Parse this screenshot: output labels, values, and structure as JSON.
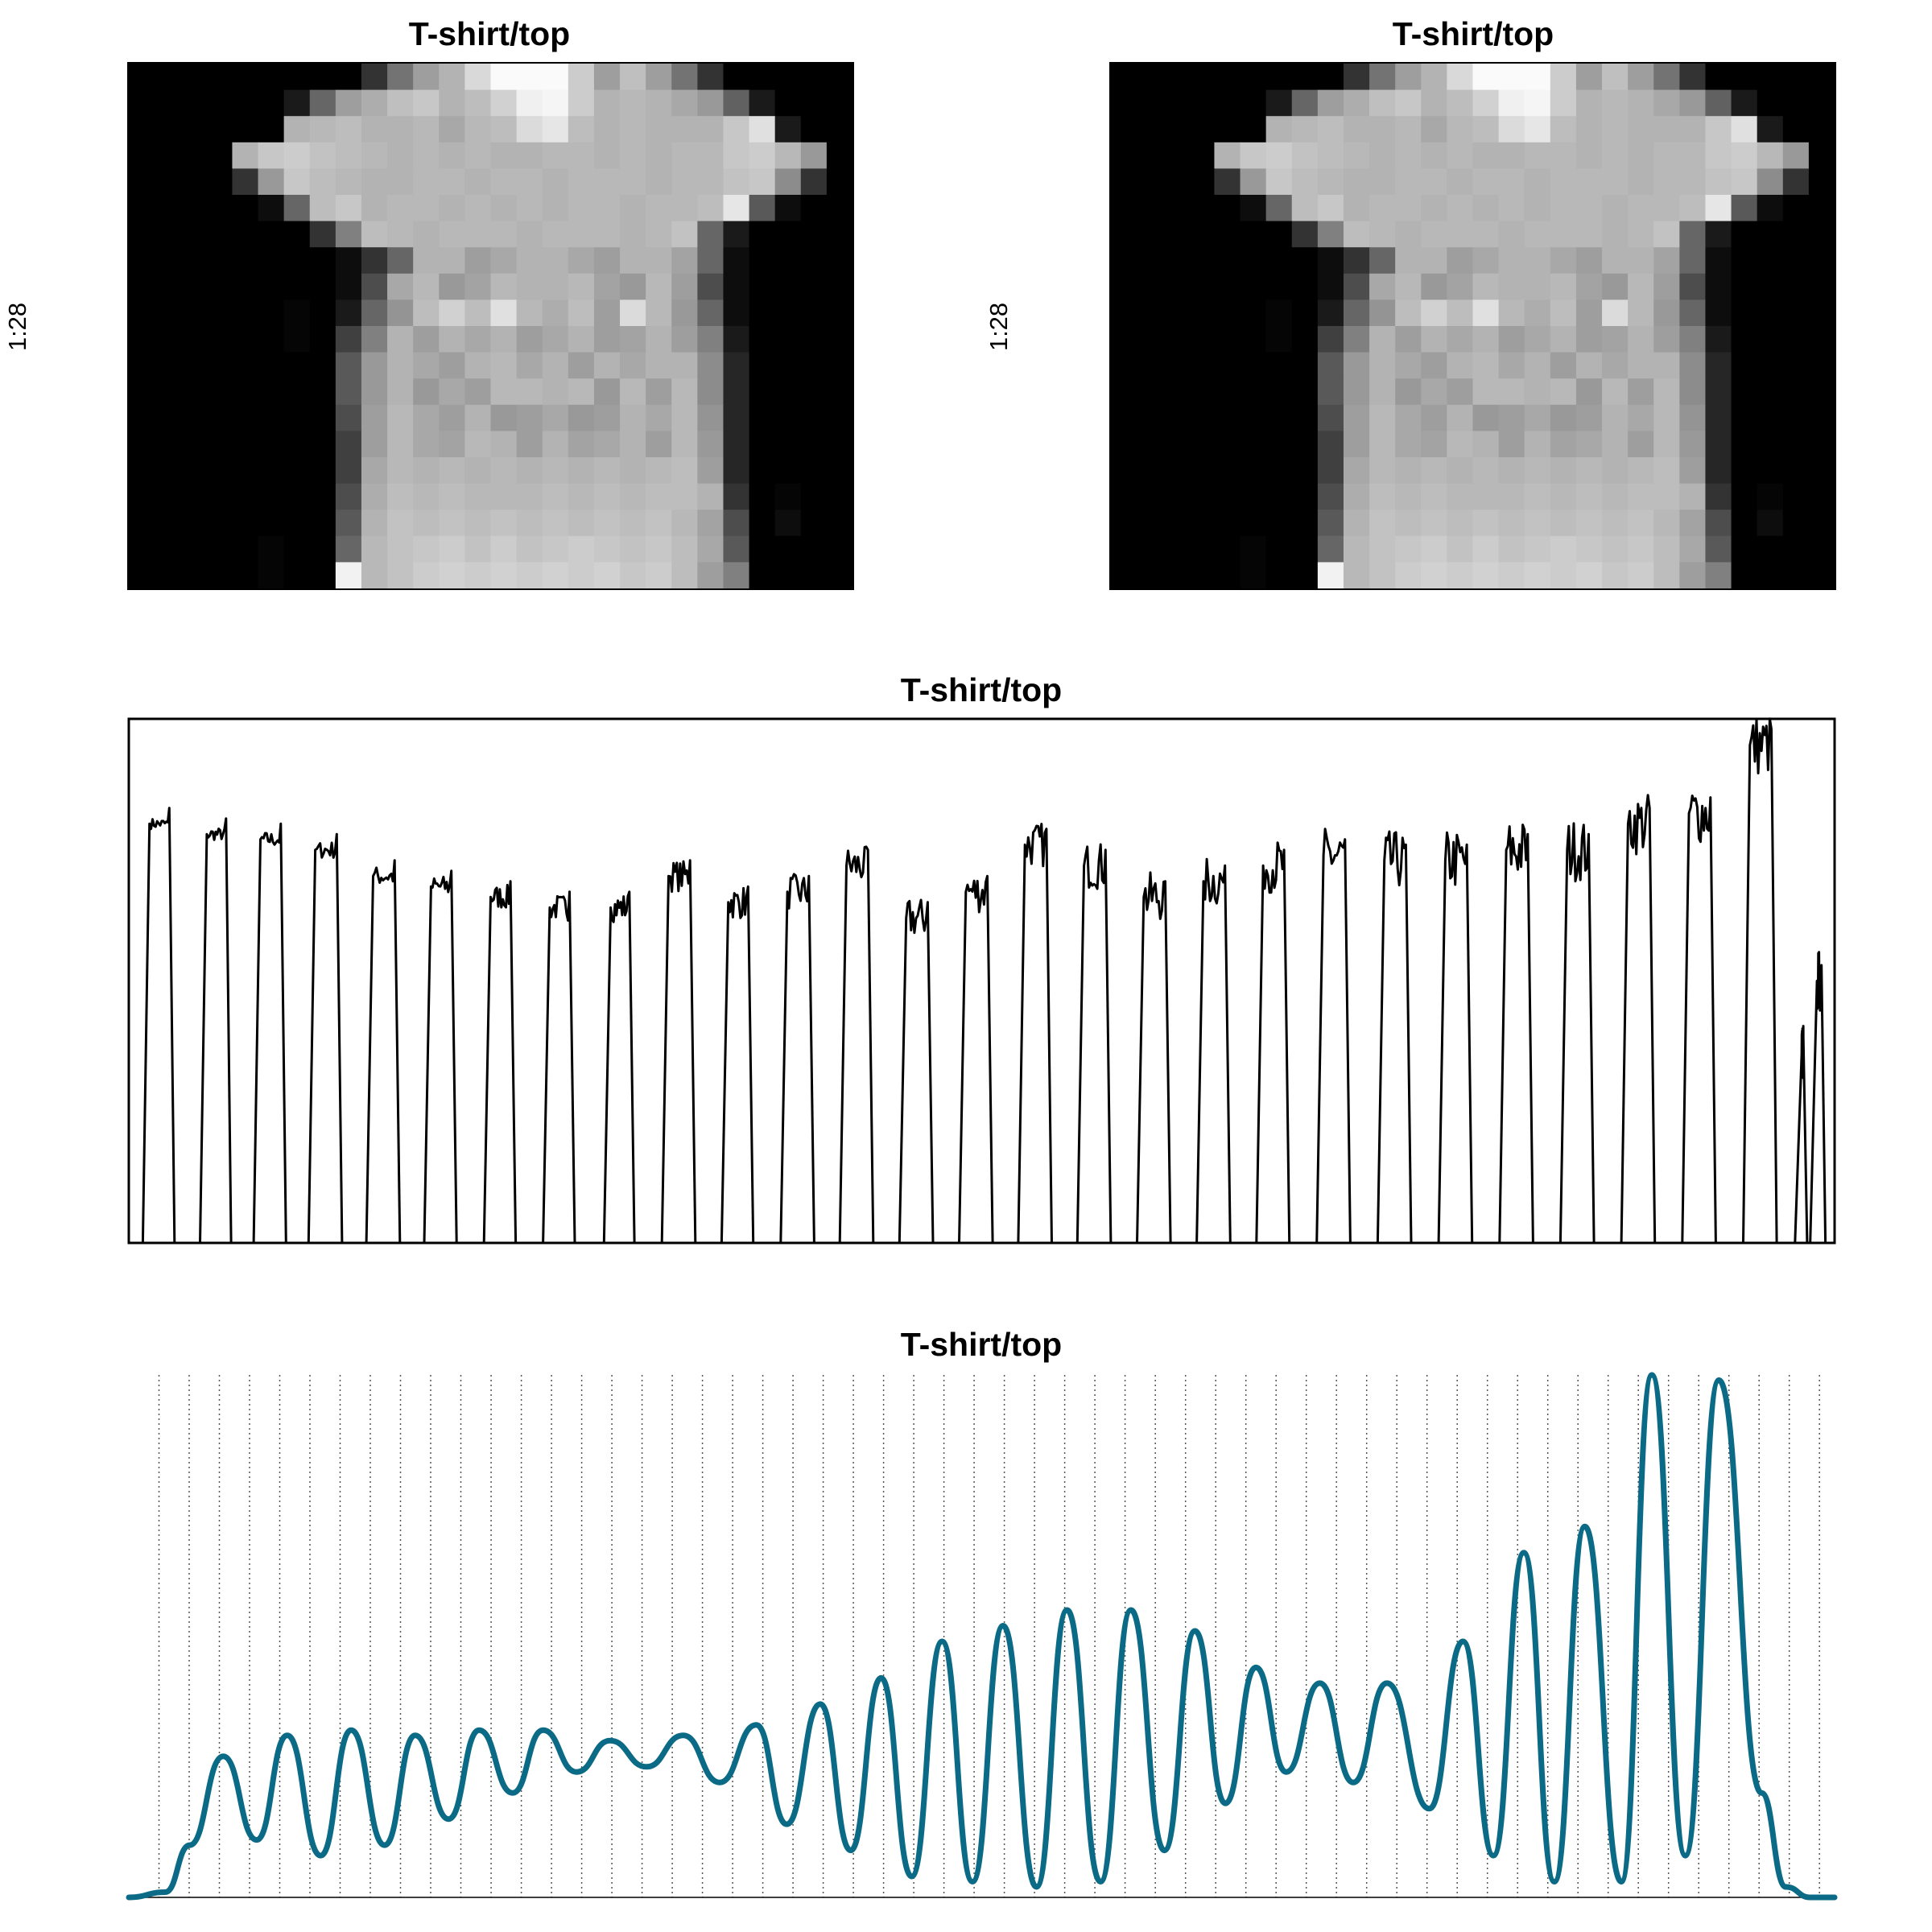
{
  "panels": {
    "image1": {
      "title": "T-shirt/top",
      "ylabel": "1:28"
    },
    "image2": {
      "title": "T-shirt/top",
      "ylabel": "1:28"
    },
    "signal": {
      "title": "T-shirt/top"
    },
    "smooth": {
      "title": "T-shirt/top"
    }
  },
  "colors": {
    "smooth_line": "#0b6a85",
    "signal_line": "#000000",
    "grid": "#555555"
  },
  "chart_data": [
    {
      "type": "heatmap",
      "title": "T-shirt/top",
      "ylabel": "1:28",
      "colormap": "grayscale",
      "grid": false,
      "rows": 20,
      "cols": 28,
      "values": [
        [
          0,
          0,
          0,
          0,
          0,
          0,
          0,
          0,
          0,
          0.2,
          0.45,
          0.62,
          0.7,
          0.85,
          0.98,
          0.98,
          0.98,
          0.8,
          0.62,
          0.75,
          0.62,
          0.45,
          0.2,
          0,
          0,
          0,
          0,
          0
        ],
        [
          0,
          0,
          0,
          0,
          0,
          0,
          0.1,
          0.4,
          0.62,
          0.68,
          0.75,
          0.78,
          0.7,
          0.74,
          0.82,
          0.94,
          0.96,
          0.8,
          0.7,
          0.72,
          0.7,
          0.66,
          0.6,
          0.38,
          0.1,
          0,
          0,
          0
        ],
        [
          0,
          0,
          0,
          0,
          0,
          0,
          0.7,
          0.72,
          0.74,
          0.7,
          0.7,
          0.72,
          0.66,
          0.72,
          0.74,
          0.86,
          0.9,
          0.74,
          0.7,
          0.72,
          0.7,
          0.7,
          0.7,
          0.78,
          0.88,
          0.1,
          0,
          0
        ],
        [
          0,
          0,
          0,
          0,
          0.7,
          0.78,
          0.8,
          0.76,
          0.74,
          0.72,
          0.7,
          0.72,
          0.7,
          0.72,
          0.7,
          0.7,
          0.72,
          0.72,
          0.7,
          0.72,
          0.7,
          0.72,
          0.72,
          0.78,
          0.8,
          0.72,
          0.6,
          0
        ],
        [
          0,
          0,
          0,
          0,
          0.2,
          0.6,
          0.78,
          0.74,
          0.72,
          0.7,
          0.7,
          0.72,
          0.72,
          0.7,
          0.72,
          0.72,
          0.7,
          0.72,
          0.72,
          0.72,
          0.7,
          0.72,
          0.72,
          0.76,
          0.78,
          0.55,
          0.2,
          0
        ],
        [
          0,
          0,
          0,
          0,
          0,
          0.05,
          0.4,
          0.74,
          0.78,
          0.7,
          0.72,
          0.72,
          0.7,
          0.72,
          0.7,
          0.72,
          0.7,
          0.72,
          0.72,
          0.7,
          0.72,
          0.72,
          0.74,
          0.9,
          0.35,
          0.05,
          0,
          0
        ],
        [
          0,
          0,
          0,
          0,
          0,
          0,
          0,
          0.2,
          0.5,
          0.74,
          0.72,
          0.7,
          0.72,
          0.72,
          0.72,
          0.7,
          0.72,
          0.72,
          0.72,
          0.7,
          0.72,
          0.76,
          0.4,
          0.1,
          0,
          0,
          0,
          0
        ],
        [
          0,
          0,
          0,
          0,
          0,
          0,
          0,
          0,
          0.05,
          0.2,
          0.4,
          0.7,
          0.7,
          0.62,
          0.66,
          0.7,
          0.7,
          0.66,
          0.62,
          0.7,
          0.7,
          0.64,
          0.4,
          0.05,
          0,
          0,
          0,
          0
        ],
        [
          0,
          0,
          0,
          0,
          0,
          0,
          0,
          0,
          0.05,
          0.3,
          0.66,
          0.72,
          0.6,
          0.64,
          0.72,
          0.7,
          0.7,
          0.72,
          0.64,
          0.6,
          0.72,
          0.62,
          0.3,
          0.05,
          0,
          0,
          0,
          0
        ],
        [
          0,
          0,
          0,
          0,
          0,
          0,
          0.02,
          0,
          0.1,
          0.4,
          0.58,
          0.74,
          0.82,
          0.74,
          0.88,
          0.72,
          0.68,
          0.74,
          0.62,
          0.86,
          0.72,
          0.6,
          0.4,
          0.05,
          0,
          0,
          0,
          0
        ],
        [
          0,
          0,
          0,
          0,
          0,
          0,
          0.02,
          0,
          0.25,
          0.5,
          0.7,
          0.62,
          0.7,
          0.66,
          0.7,
          0.62,
          0.66,
          0.7,
          0.62,
          0.64,
          0.7,
          0.62,
          0.5,
          0.1,
          0,
          0,
          0,
          0
        ],
        [
          0,
          0,
          0,
          0,
          0,
          0,
          0,
          0,
          0.35,
          0.6,
          0.7,
          0.66,
          0.62,
          0.7,
          0.72,
          0.66,
          0.7,
          0.62,
          0.7,
          0.66,
          0.7,
          0.7,
          0.55,
          0.15,
          0,
          0,
          0,
          0
        ],
        [
          0,
          0,
          0,
          0,
          0,
          0,
          0,
          0,
          0.35,
          0.6,
          0.7,
          0.6,
          0.66,
          0.62,
          0.72,
          0.72,
          0.7,
          0.72,
          0.6,
          0.72,
          0.62,
          0.72,
          0.55,
          0.15,
          0,
          0,
          0,
          0
        ],
        [
          0,
          0,
          0,
          0,
          0,
          0,
          0,
          0,
          0.3,
          0.62,
          0.72,
          0.66,
          0.62,
          0.7,
          0.6,
          0.62,
          0.66,
          0.6,
          0.62,
          0.7,
          0.66,
          0.72,
          0.58,
          0.15,
          0,
          0,
          0,
          0
        ],
        [
          0,
          0,
          0,
          0,
          0,
          0,
          0,
          0,
          0.25,
          0.62,
          0.72,
          0.66,
          0.64,
          0.72,
          0.7,
          0.62,
          0.7,
          0.64,
          0.66,
          0.7,
          0.62,
          0.72,
          0.6,
          0.15,
          0,
          0,
          0,
          0
        ],
        [
          0,
          0,
          0,
          0,
          0,
          0,
          0,
          0,
          0.25,
          0.66,
          0.72,
          0.7,
          0.72,
          0.7,
          0.72,
          0.7,
          0.72,
          0.7,
          0.72,
          0.7,
          0.72,
          0.74,
          0.62,
          0.15,
          0,
          0,
          0,
          0
        ],
        [
          0,
          0,
          0,
          0,
          0,
          0,
          0,
          0,
          0.3,
          0.68,
          0.74,
          0.72,
          0.74,
          0.72,
          0.72,
          0.72,
          0.74,
          0.72,
          0.74,
          0.72,
          0.74,
          0.74,
          0.7,
          0.2,
          0,
          0.02,
          0,
          0
        ],
        [
          0,
          0,
          0,
          0,
          0,
          0,
          0,
          0,
          0.35,
          0.7,
          0.76,
          0.74,
          0.76,
          0.74,
          0.76,
          0.74,
          0.76,
          0.74,
          0.76,
          0.74,
          0.76,
          0.72,
          0.64,
          0.3,
          0,
          0.05,
          0,
          0
        ],
        [
          0,
          0,
          0,
          0,
          0,
          0.02,
          0,
          0,
          0.4,
          0.72,
          0.76,
          0.78,
          0.8,
          0.76,
          0.8,
          0.76,
          0.78,
          0.8,
          0.78,
          0.76,
          0.78,
          0.74,
          0.66,
          0.35,
          0,
          0,
          0,
          0
        ],
        [
          0,
          0,
          0,
          0,
          0,
          0.02,
          0,
          0,
          0.95,
          0.72,
          0.76,
          0.8,
          0.82,
          0.8,
          0.82,
          0.8,
          0.82,
          0.8,
          0.82,
          0.78,
          0.8,
          0.74,
          0.62,
          0.5,
          0,
          0,
          0,
          0
        ]
      ]
    },
    {
      "type": "heatmap",
      "title": "T-shirt/top",
      "ylabel": "1:28",
      "colormap": "grayscale",
      "grid": false,
      "same_as": "image1"
    },
    {
      "type": "line",
      "title": "T-shirt/top",
      "grid": false,
      "xlim": [
        0,
        28
      ],
      "ylim": [
        0,
        1
      ],
      "segments": [
        {
          "start": 0.28,
          "end": 0.75,
          "level": 0.8
        },
        {
          "start": 1.22,
          "end": 1.68,
          "level": 0.78
        },
        {
          "start": 2.1,
          "end": 2.58,
          "level": 0.77
        },
        {
          "start": 3.0,
          "end": 3.5,
          "level": 0.75
        },
        {
          "start": 3.95,
          "end": 4.45,
          "level": 0.7
        },
        {
          "start": 4.9,
          "end": 5.38,
          "level": 0.68
        },
        {
          "start": 5.88,
          "end": 6.35,
          "level": 0.66
        },
        {
          "start": 6.85,
          "end": 7.32,
          "level": 0.64
        },
        {
          "start": 7.85,
          "end": 8.3,
          "level": 0.64
        },
        {
          "start": 8.8,
          "end": 9.3,
          "level": 0.7
        },
        {
          "start": 9.78,
          "end": 10.25,
          "level": 0.65
        },
        {
          "start": 10.75,
          "end": 11.25,
          "level": 0.67
        },
        {
          "start": 11.72,
          "end": 12.22,
          "level": 0.72
        },
        {
          "start": 12.7,
          "end": 13.2,
          "level": 0.62
        },
        {
          "start": 13.68,
          "end": 14.18,
          "level": 0.67
        },
        {
          "start": 14.65,
          "end": 15.15,
          "level": 0.76
        },
        {
          "start": 15.62,
          "end": 16.12,
          "level": 0.72
        },
        {
          "start": 16.6,
          "end": 17.1,
          "level": 0.66
        },
        {
          "start": 17.58,
          "end": 18.08,
          "level": 0.69
        },
        {
          "start": 18.56,
          "end": 19.05,
          "level": 0.72
        },
        {
          "start": 19.55,
          "end": 20.05,
          "level": 0.74
        },
        {
          "start": 20.55,
          "end": 21.05,
          "level": 0.73
        },
        {
          "start": 21.55,
          "end": 22.05,
          "level": 0.73
        },
        {
          "start": 22.55,
          "end": 23.05,
          "level": 0.75
        },
        {
          "start": 23.55,
          "end": 24.05,
          "level": 0.75
        },
        {
          "start": 24.55,
          "end": 25.05,
          "level": 0.8
        },
        {
          "start": 25.55,
          "end": 26.05,
          "level": 0.82
        },
        {
          "start": 26.55,
          "end": 27.05,
          "level": 0.95
        },
        {
          "start": 27.4,
          "end": 27.55,
          "level": 0.36
        },
        {
          "start": 27.65,
          "end": 27.85,
          "level": 0.5
        }
      ]
    },
    {
      "type": "line",
      "title": "T-shirt/top",
      "grid": true,
      "grid_style": "dotted vertical",
      "xlim": [
        0,
        56
      ],
      "ylim": [
        0,
        1
      ],
      "vertical_gridlines": 56,
      "peaks": [
        {
          "x": 3.1,
          "y": 0.27
        },
        {
          "x": 5.2,
          "y": 0.31
        },
        {
          "x": 7.3,
          "y": 0.32
        },
        {
          "x": 9.4,
          "y": 0.31
        },
        {
          "x": 11.5,
          "y": 0.32
        },
        {
          "x": 13.6,
          "y": 0.32
        },
        {
          "x": 15.8,
          "y": 0.3
        },
        {
          "x": 18.2,
          "y": 0.31
        },
        {
          "x": 20.6,
          "y": 0.33
        },
        {
          "x": 22.7,
          "y": 0.37
        },
        {
          "x": 24.7,
          "y": 0.42
        },
        {
          "x": 26.7,
          "y": 0.49
        },
        {
          "x": 28.7,
          "y": 0.52
        },
        {
          "x": 30.8,
          "y": 0.55
        },
        {
          "x": 32.9,
          "y": 0.55
        },
        {
          "x": 35.0,
          "y": 0.51
        },
        {
          "x": 37.0,
          "y": 0.44
        },
        {
          "x": 39.1,
          "y": 0.41
        },
        {
          "x": 41.3,
          "y": 0.41
        },
        {
          "x": 43.8,
          "y": 0.49
        },
        {
          "x": 45.8,
          "y": 0.66
        },
        {
          "x": 47.8,
          "y": 0.71
        },
        {
          "x": 50.0,
          "y": 1.0
        },
        {
          "x": 52.2,
          "y": 0.99
        }
      ],
      "troughs": [
        {
          "x": 4.2,
          "y": 0.11
        },
        {
          "x": 6.3,
          "y": 0.08
        },
        {
          "x": 8.4,
          "y": 0.1
        },
        {
          "x": 10.5,
          "y": 0.15
        },
        {
          "x": 12.6,
          "y": 0.2
        },
        {
          "x": 14.7,
          "y": 0.24
        },
        {
          "x": 17.0,
          "y": 0.25
        },
        {
          "x": 19.4,
          "y": 0.22
        },
        {
          "x": 21.6,
          "y": 0.14
        },
        {
          "x": 23.7,
          "y": 0.09
        },
        {
          "x": 25.7,
          "y": 0.04
        },
        {
          "x": 27.7,
          "y": 0.03
        },
        {
          "x": 29.8,
          "y": 0.02
        },
        {
          "x": 31.9,
          "y": 0.03
        },
        {
          "x": 34.0,
          "y": 0.09
        },
        {
          "x": 36.0,
          "y": 0.18
        },
        {
          "x": 38.0,
          "y": 0.24
        },
        {
          "x": 40.2,
          "y": 0.22
        },
        {
          "x": 42.7,
          "y": 0.17
        },
        {
          "x": 44.8,
          "y": 0.08
        },
        {
          "x": 46.8,
          "y": 0.03
        },
        {
          "x": 49.0,
          "y": 0.03
        },
        {
          "x": 51.1,
          "y": 0.08
        }
      ]
    }
  ]
}
